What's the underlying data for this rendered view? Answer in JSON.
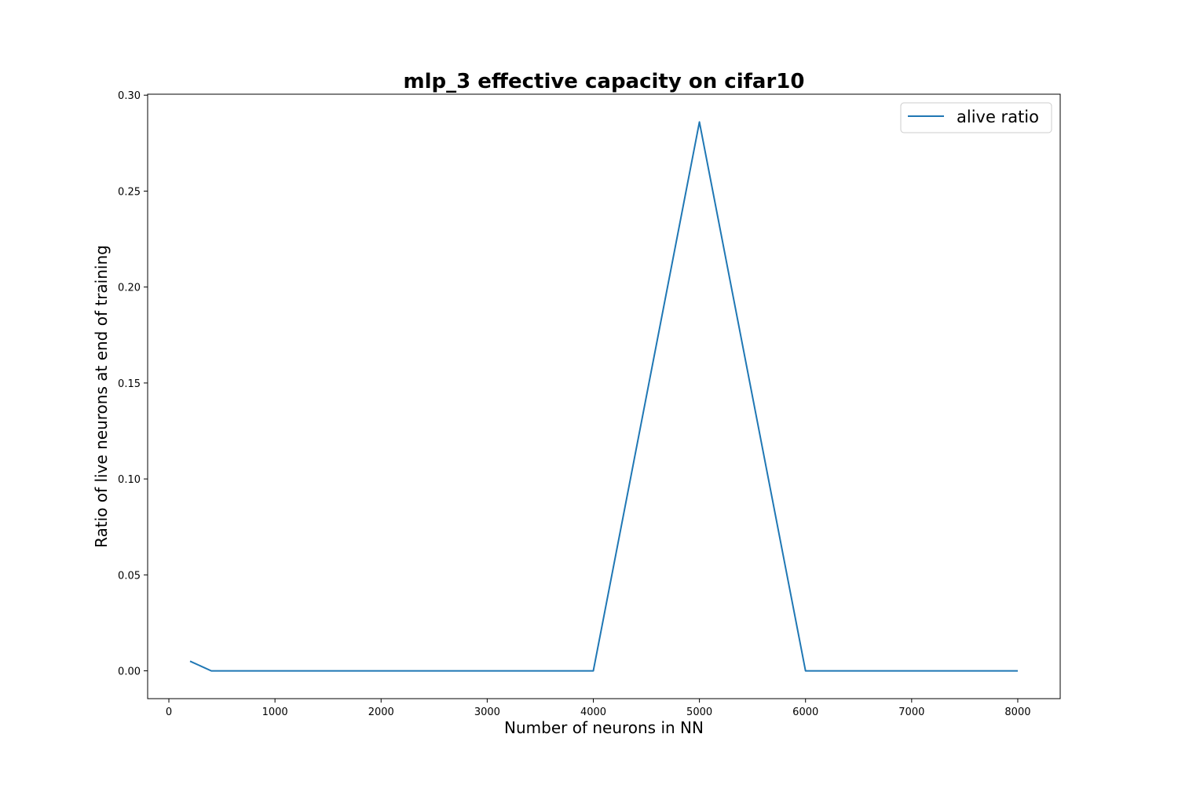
{
  "chart_data": {
    "type": "line",
    "title": "mlp_3 effective capacity on cifar10",
    "xlabel": "Number of neurons in NN",
    "ylabel": "Ratio of live neurons at end of training",
    "xlim": [
      -200,
      8400
    ],
    "ylim": [
      -0.0145,
      0.3005
    ],
    "x_ticks": [
      0,
      1000,
      2000,
      3000,
      4000,
      5000,
      6000,
      7000,
      8000
    ],
    "x_tick_labels": [
      "0",
      "1000",
      "2000",
      "3000",
      "4000",
      "5000",
      "6000",
      "7000",
      "8000"
    ],
    "y_ticks": [
      0.0,
      0.05,
      0.1,
      0.15,
      0.2,
      0.25,
      0.3
    ],
    "y_tick_labels": [
      "0.00",
      "0.05",
      "0.10",
      "0.15",
      "0.20",
      "0.25",
      "0.30"
    ],
    "grid": false,
    "legend_position": "top-right",
    "series": [
      {
        "name": "alive ratio",
        "color": "#1f77b4",
        "x": [
          200,
          400,
          600,
          800,
          1000,
          2000,
          3000,
          4000,
          5000,
          6000,
          7000,
          8000
        ],
        "y": [
          0.005,
          0.0,
          0.0,
          0.0,
          0.0,
          0.0,
          0.0,
          0.0,
          0.286,
          0.0,
          0.0,
          0.0
        ]
      }
    ]
  }
}
